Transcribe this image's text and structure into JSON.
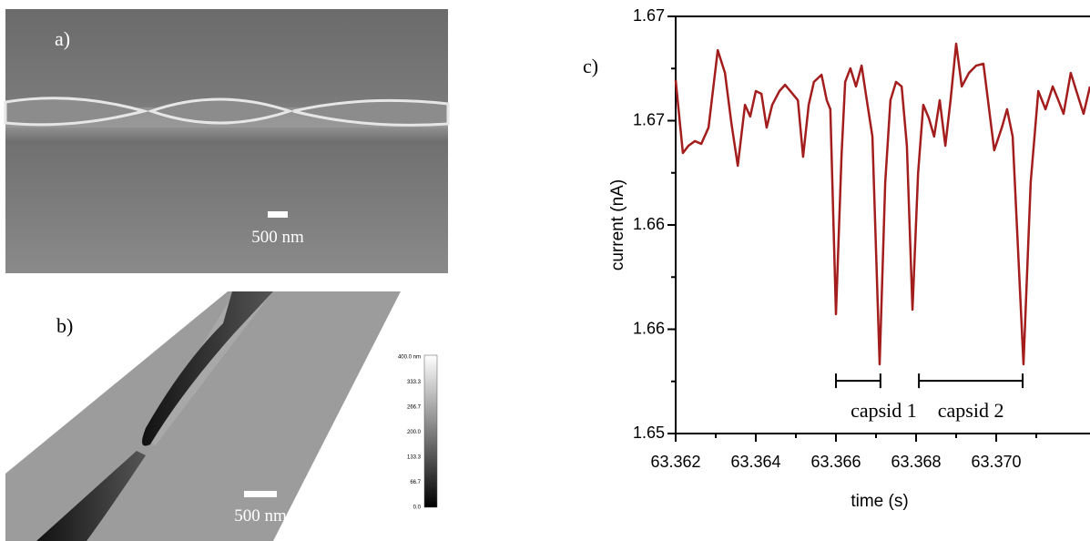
{
  "panels": {
    "a": {
      "label": "a)",
      "scale_bar": "500 nm"
    },
    "b": {
      "label": "b)",
      "scale_bar": "500 nm",
      "colorbar": [
        "400.0 nm",
        "333.3",
        "266.7",
        "200.0",
        "133.3",
        "66.7",
        "0.0"
      ]
    }
  },
  "chart_data": {
    "type": "line",
    "panel_label": "c)",
    "x_label": "time (s)",
    "y_label": "current (nA)",
    "x": [
      63.362,
      63.36218,
      63.36232,
      63.36248,
      63.36264,
      63.36282,
      63.36305,
      63.36323,
      63.36339,
      63.36355,
      63.36373,
      63.36386,
      63.364,
      63.36414,
      63.36427,
      63.36441,
      63.36459,
      63.36473,
      63.36486,
      63.36505,
      63.36518,
      63.36532,
      63.36545,
      63.36564,
      63.36577,
      63.36586,
      63.366,
      63.36614,
      63.36623,
      63.36636,
      63.3665,
      63.36664,
      63.36677,
      63.36691,
      63.36709,
      63.36723,
      63.36736,
      63.3675,
      63.36764,
      63.36777,
      63.36791,
      63.36805,
      63.36818,
      63.36832,
      63.36845,
      63.36859,
      63.36873,
      63.36886,
      63.369,
      63.36914,
      63.36932,
      63.3695,
      63.36968,
      63.36995,
      63.37014,
      63.37027,
      63.37041,
      63.37068,
      63.37086,
      63.37105,
      63.37123,
      63.37141,
      63.37155,
      63.37168,
      63.37186,
      63.372,
      63.37218,
      63.37234
    ],
    "series": [
      {
        "color": "#a31d1d",
        "values": [
          1.66694,
          1.66345,
          1.6638,
          1.66402,
          1.66389,
          1.66467,
          1.66838,
          1.66729,
          1.66489,
          1.66284,
          1.66576,
          1.6652,
          1.66642,
          1.66629,
          1.66467,
          1.66576,
          1.66642,
          1.66672,
          1.66642,
          1.66598,
          1.66327,
          1.66576,
          1.66686,
          1.6672,
          1.66598,
          1.66555,
          1.65572,
          1.66336,
          1.66686,
          1.66751,
          1.66664,
          1.66764,
          1.66598,
          1.66424,
          1.65332,
          1.66205,
          1.66598,
          1.66686,
          1.66664,
          1.6638,
          1.65594,
          1.66249,
          1.66576,
          1.66511,
          1.66424,
          1.66598,
          1.6638,
          1.66598,
          1.66869,
          1.66664,
          1.66729,
          1.66764,
          1.66773,
          1.66358,
          1.66467,
          1.66555,
          1.66424,
          1.65332,
          1.66205,
          1.66642,
          1.66555,
          1.66664,
          1.66598,
          1.66533,
          1.66729,
          1.66642,
          1.66533,
          1.66664
        ]
      }
    ],
    "xlim": [
      63.362,
      63.37234
    ],
    "ylim": [
      1.65,
      1.67
    ],
    "xticks": [
      63.362,
      63.364,
      63.366,
      63.368,
      {
        "value": 63.37,
        "label": "63.370"
      }
    ],
    "yticks": [
      1.65,
      {
        "value": 1.655,
        "label": "1.66"
      },
      1.66,
      {
        "value": 1.665,
        "label": "1.67"
      },
      1.67
    ],
    "annotations": [
      {
        "text": "capsid 1",
        "x": [
          63.366,
          63.36711
        ],
        "y": 1.65253
      },
      {
        "text": "capsid 2",
        "x": [
          63.36807,
          63.37066
        ],
        "y": 1.65253
      }
    ]
  }
}
